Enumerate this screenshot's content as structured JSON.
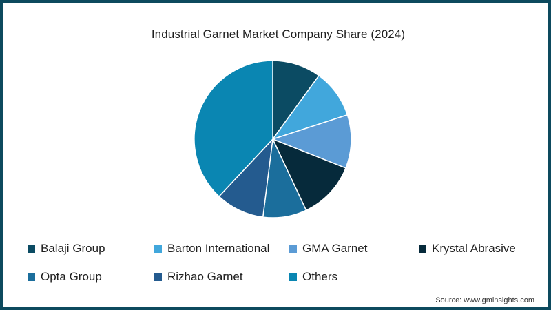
{
  "title": "Industrial Garnet Market Company Share (2024)",
  "source": "Source: www.gminsights.com",
  "frame_color": "#0d4a5e",
  "legend": [
    {
      "label": "Balaji Group",
      "color": "#0b4b63"
    },
    {
      "label": "Barton International",
      "color": "#41a7dc"
    },
    {
      "label": "GMA Garnet",
      "color": "#5b9bd5"
    },
    {
      "label": "Krystal Abrasive",
      "color": "#062a3b"
    },
    {
      "label": "Opta Group",
      "color": "#1b6e9c"
    },
    {
      "label": "Rizhao Garnet",
      "color": "#245b8f"
    },
    {
      "label": "Others",
      "color": "#0a86b2"
    }
  ],
  "chart_data": {
    "type": "pie",
    "title": "Industrial Garnet Market Company Share (2024)",
    "categories": [
      "Balaji Group",
      "Barton International",
      "GMA Garnet",
      "Krystal Abrasive",
      "Opta Group",
      "Rizhao Garnet",
      "Others"
    ],
    "values": [
      10,
      10,
      11,
      12,
      9,
      10,
      38
    ],
    "unit": "%",
    "colors": [
      "#0b4b63",
      "#41a7dc",
      "#5b9bd5",
      "#062a3b",
      "#1b6e9c",
      "#245b8f",
      "#0a86b2"
    ],
    "start_angle_deg": 0,
    "direction": "clockwise",
    "data_labels": false,
    "legend_position": "bottom",
    "source": "Source: www.gminsights.com"
  }
}
